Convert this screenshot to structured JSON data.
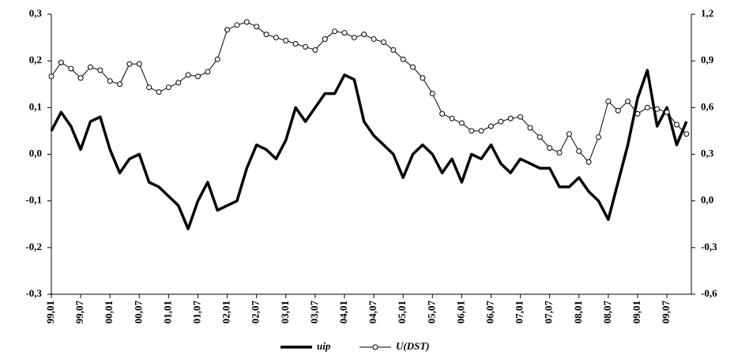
{
  "chart_data": {
    "type": "line",
    "categories": [
      "99,01",
      null,
      null,
      "99,07",
      null,
      null,
      "00,01",
      null,
      null,
      "00,07",
      null,
      null,
      "01,01",
      null,
      null,
      "01,07",
      null,
      null,
      "02,01",
      null,
      null,
      "02,07",
      null,
      null,
      "03,01",
      null,
      null,
      "03,07",
      null,
      null,
      "04,01",
      null,
      null,
      "04,07",
      null,
      null,
      "05,01",
      null,
      null,
      "05,07",
      null,
      null,
      "06,01",
      null,
      null,
      "06,07",
      null,
      null,
      "07,01",
      null,
      null,
      "07,07",
      null,
      null,
      "08,01",
      null,
      null,
      "08,07",
      null,
      null,
      "09,01",
      null,
      null,
      "09,07",
      null,
      null
    ],
    "series": [
      {
        "name": "uip",
        "color": "#000000",
        "values": [
          0.05,
          0.09,
          0.06,
          0.01,
          0.07,
          0.08,
          0.01,
          -0.04,
          -0.01,
          0.0,
          -0.06,
          -0.07,
          -0.09,
          -0.11,
          -0.16,
          -0.1,
          -0.06,
          -0.12,
          -0.11,
          -0.1,
          -0.03,
          0.02,
          0.01,
          -0.01,
          0.03,
          0.1,
          0.07,
          0.1,
          0.13,
          0.13,
          0.17,
          0.16,
          0.07,
          0.04,
          0.02,
          0.0,
          -0.05,
          0.0,
          0.02,
          0.0,
          -0.04,
          -0.01,
          -0.06,
          0.0,
          -0.01,
          0.02,
          -0.02,
          -0.04,
          -0.01,
          -0.02,
          -0.03,
          -0.03,
          -0.07,
          -0.07,
          -0.05,
          -0.08,
          -0.1,
          -0.14,
          -0.06,
          0.02,
          0.12,
          0.18,
          0.06,
          0.1,
          0.02,
          0.07
        ]
      },
      {
        "name": "U(DST)",
        "color": "#000000",
        "axis": "y2",
        "values": [
          0.8,
          0.89,
          0.85,
          0.79,
          0.86,
          0.84,
          0.77,
          0.75,
          0.88,
          0.88,
          0.73,
          0.7,
          0.73,
          0.76,
          0.81,
          0.8,
          0.83,
          0.91,
          1.1,
          1.13,
          1.15,
          1.12,
          1.07,
          1.05,
          1.03,
          1.01,
          0.99,
          0.97,
          1.04,
          1.09,
          1.08,
          1.05,
          1.07,
          1.04,
          1.02,
          0.97,
          0.91,
          0.86,
          0.79,
          0.69,
          0.56,
          0.53,
          0.5,
          0.45,
          0.45,
          0.48,
          0.51,
          0.53,
          0.54,
          0.47,
          0.41,
          0.34,
          0.31,
          0.43,
          0.32,
          0.25,
          0.41,
          0.64,
          0.58,
          0.64,
          0.56,
          0.6,
          0.59,
          0.57,
          0.49,
          0.43
        ]
      }
    ],
    "ylim": [
      -0.3,
      0.3
    ],
    "yticks": [
      {
        "value": -0.3,
        "label": "-0,3"
      },
      {
        "value": -0.2,
        "label": "-0,2"
      },
      {
        "value": -0.1,
        "label": "-0,1"
      },
      {
        "value": 0,
        "label": "0,0"
      },
      {
        "value": 0.1,
        "label": "0,1"
      },
      {
        "value": 0.2,
        "label": "0,2"
      },
      {
        "value": 0.3,
        "label": "0,3"
      }
    ],
    "y2lim": [
      -0.6,
      1.2
    ],
    "y2ticks": [
      {
        "value": -0.6,
        "label": "-0,6"
      },
      {
        "value": -0.3,
        "label": "-0,3"
      },
      {
        "value": 0,
        "label": "0,0"
      },
      {
        "value": 0.3,
        "label": "0,3"
      },
      {
        "value": 0.6,
        "label": "0,6"
      },
      {
        "value": 0.9,
        "label": "0,9"
      },
      {
        "value": 1.2,
        "label": "1,2"
      }
    ],
    "grid": false,
    "legend": "bottom"
  }
}
